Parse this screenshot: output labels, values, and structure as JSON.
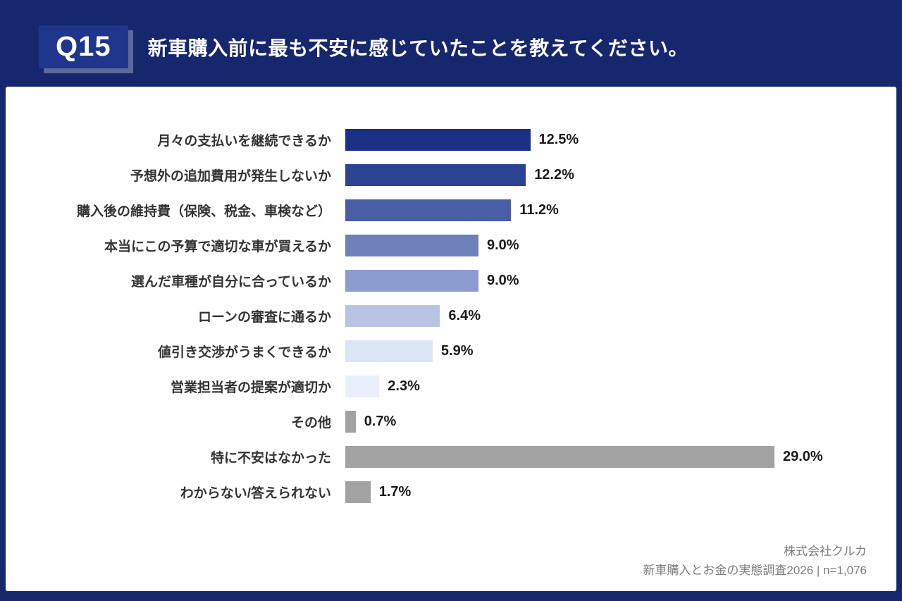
{
  "header": {
    "badge": "Q15",
    "title": "新車購入前に最も不安に感じていたことを教えてください。"
  },
  "chart_data": {
    "type": "bar",
    "orientation": "horizontal",
    "title": "新車購入前に最も不安に感じていたこと",
    "categories": [
      "月々の支払いを継続できるか",
      "予想外の追加費用が発生しないか",
      "購入後の維持費（保険、税金、車検など）",
      "本当にこの予算で適切な車が買えるか",
      "選んだ車種が自分に合っているか",
      "ローンの審査に通るか",
      "値引き交渉がうまくできるか",
      "営業担当者の提案が適切か",
      "その他",
      "特に不安はなかった",
      "わからない/答えられない"
    ],
    "values": [
      12.5,
      12.2,
      11.2,
      9.0,
      9.0,
      6.4,
      5.9,
      2.3,
      0.7,
      29.0,
      1.7
    ],
    "value_labels": [
      "12.5%",
      "12.2%",
      "11.2%",
      "9.0%",
      "9.0%",
      "6.4%",
      "5.9%",
      "2.3%",
      "0.7%",
      "29.0%",
      "1.7%"
    ],
    "bar_colors": [
      "#1c3186",
      "#2c4293",
      "#4a5ea6",
      "#6d80ba",
      "#8c9cce",
      "#b7c4e4",
      "#dce5f6",
      "#e9f0fb",
      "#a2a2a2",
      "#a2a2a2",
      "#a2a2a2"
    ],
    "xlim": [
      0,
      30
    ],
    "grid": false,
    "legend": "none"
  },
  "footer": {
    "company": "株式会社クルカ",
    "source": "新車購入とお金の実態調査2026 | n=1,076"
  },
  "colors": {
    "page_background": "#17276d",
    "card_background": "#ffffff",
    "badge_background": "#20368c",
    "title_text": "#ffffff",
    "label_text": "#333333",
    "value_text": "#1a1a1a",
    "footer_text": "#7d7d7d"
  }
}
